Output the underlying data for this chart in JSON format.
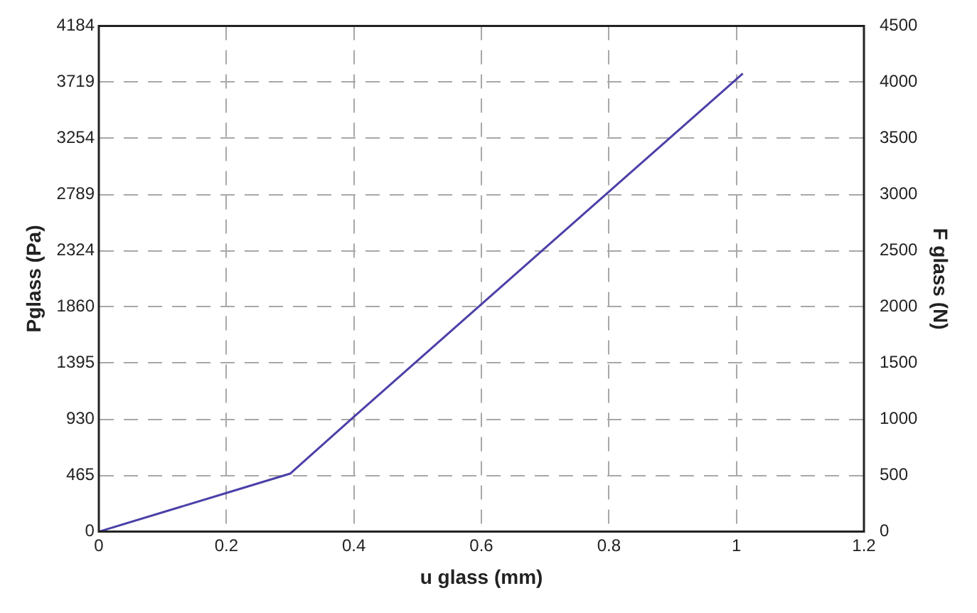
{
  "chart_data": {
    "type": "line",
    "xlabel": "u glass (mm)",
    "ylabel": "Pglass (Pa)",
    "y2label": "F glass (N)",
    "series": [
      {
        "color": "#4b40a8",
        "x": [
          0,
          0.2,
          0.3,
          0.4,
          1.01
        ],
        "values": [
          0,
          320,
          480,
          950,
          3790
        ]
      }
    ],
    "xlim": [
      0,
      1.2
    ],
    "xticks": [
      0,
      0.2,
      0.4,
      0.6,
      0.8,
      1,
      1.2
    ],
    "ylim": [
      0,
      4184
    ],
    "yticks": [
      0,
      465,
      930,
      1395,
      1860,
      2324,
      2789,
      3254,
      3719,
      4184
    ],
    "y2lim": [
      0,
      4500
    ],
    "y2ticks": [
      0,
      500,
      1000,
      1500,
      2000,
      2500,
      3000,
      3500,
      4000,
      4500
    ],
    "grid": true,
    "legend": false,
    "marker": "none",
    "line_style": "solid"
  }
}
